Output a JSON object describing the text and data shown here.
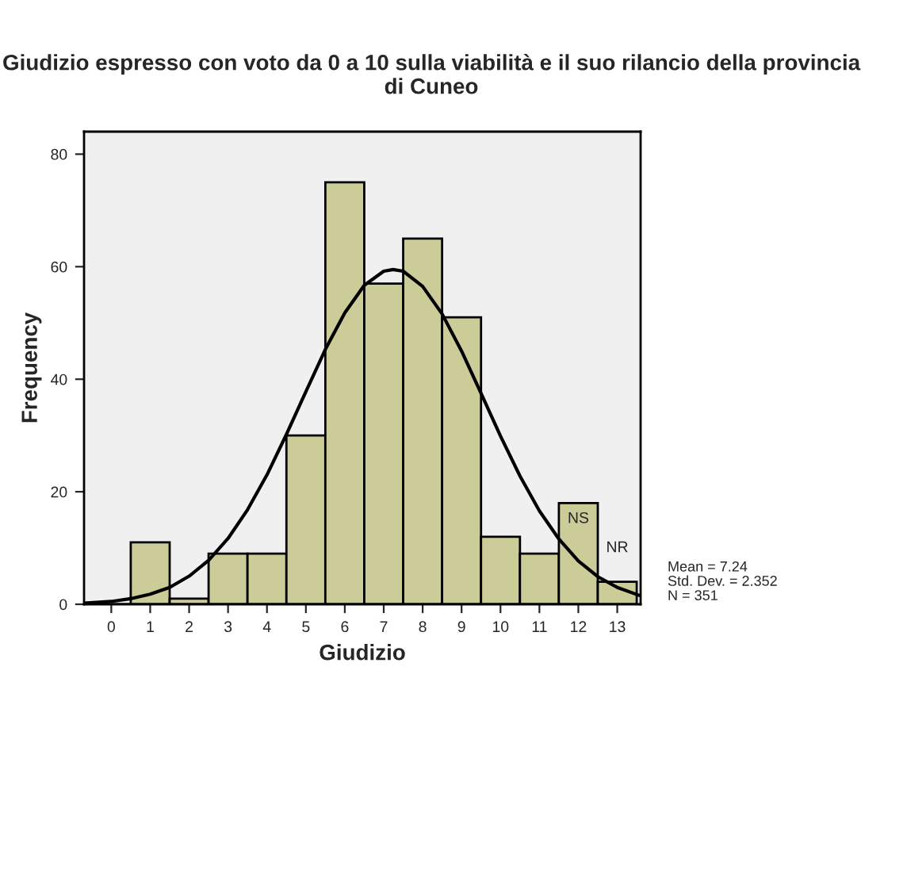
{
  "chart_data": {
    "type": "histogram",
    "title": "Giudizio espresso con voto da 0 a 10 sulla viabilità e il suo rilancio della provincia di Cuneo",
    "xlabel": "Giudizio",
    "ylabel": "Frequency",
    "bins": [
      -0.5,
      0.5,
      1.5,
      2.5,
      3.5,
      4.5,
      5.5,
      6.5,
      7.5,
      8.5,
      9.5,
      10.5,
      11.5,
      12.5,
      13.5
    ],
    "values": [
      0,
      11,
      1,
      9,
      9,
      30,
      75,
      57,
      65,
      51,
      12,
      9,
      18,
      4
    ],
    "color": "#cccc99",
    "series": [
      {
        "type": "line",
        "color": "#000000",
        "x": [
          -0.7,
          0,
          0.5,
          1,
          1.5,
          2,
          2.5,
          3,
          3.5,
          4,
          4.5,
          5,
          5.5,
          6,
          6.5,
          7,
          7.24,
          7.5,
          8,
          8.5,
          9,
          9.5,
          10,
          10.5,
          11,
          11.5,
          12,
          12.5,
          13,
          13.6
        ],
        "values": [
          0.2,
          0.5,
          1.0,
          1.8,
          3.0,
          5.0,
          7.8,
          11.7,
          16.8,
          23.0,
          30.2,
          37.8,
          45.3,
          51.8,
          56.7,
          59.2,
          59.5,
          59.2,
          56.5,
          51.6,
          45.0,
          37.5,
          29.9,
          22.8,
          16.6,
          11.6,
          7.7,
          4.9,
          3.0,
          1.5
        ]
      }
    ],
    "annotations": [
      {
        "text": "NS",
        "x": 12,
        "y": 18
      },
      {
        "text": "NR",
        "x": 13,
        "y": 4
      },
      "Mean = 7.24\nStd. Dev. = 2.352\nN = 351"
    ],
    "xlim": [
      -0.7,
      13.6
    ],
    "ylim": [
      0,
      84
    ],
    "xticks": [
      0,
      1,
      2,
      3,
      4,
      5,
      6,
      7,
      8,
      9,
      10,
      11,
      12,
      13
    ],
    "yticks": [
      0,
      20,
      40,
      60,
      80
    ],
    "grid": false,
    "legend": false
  }
}
